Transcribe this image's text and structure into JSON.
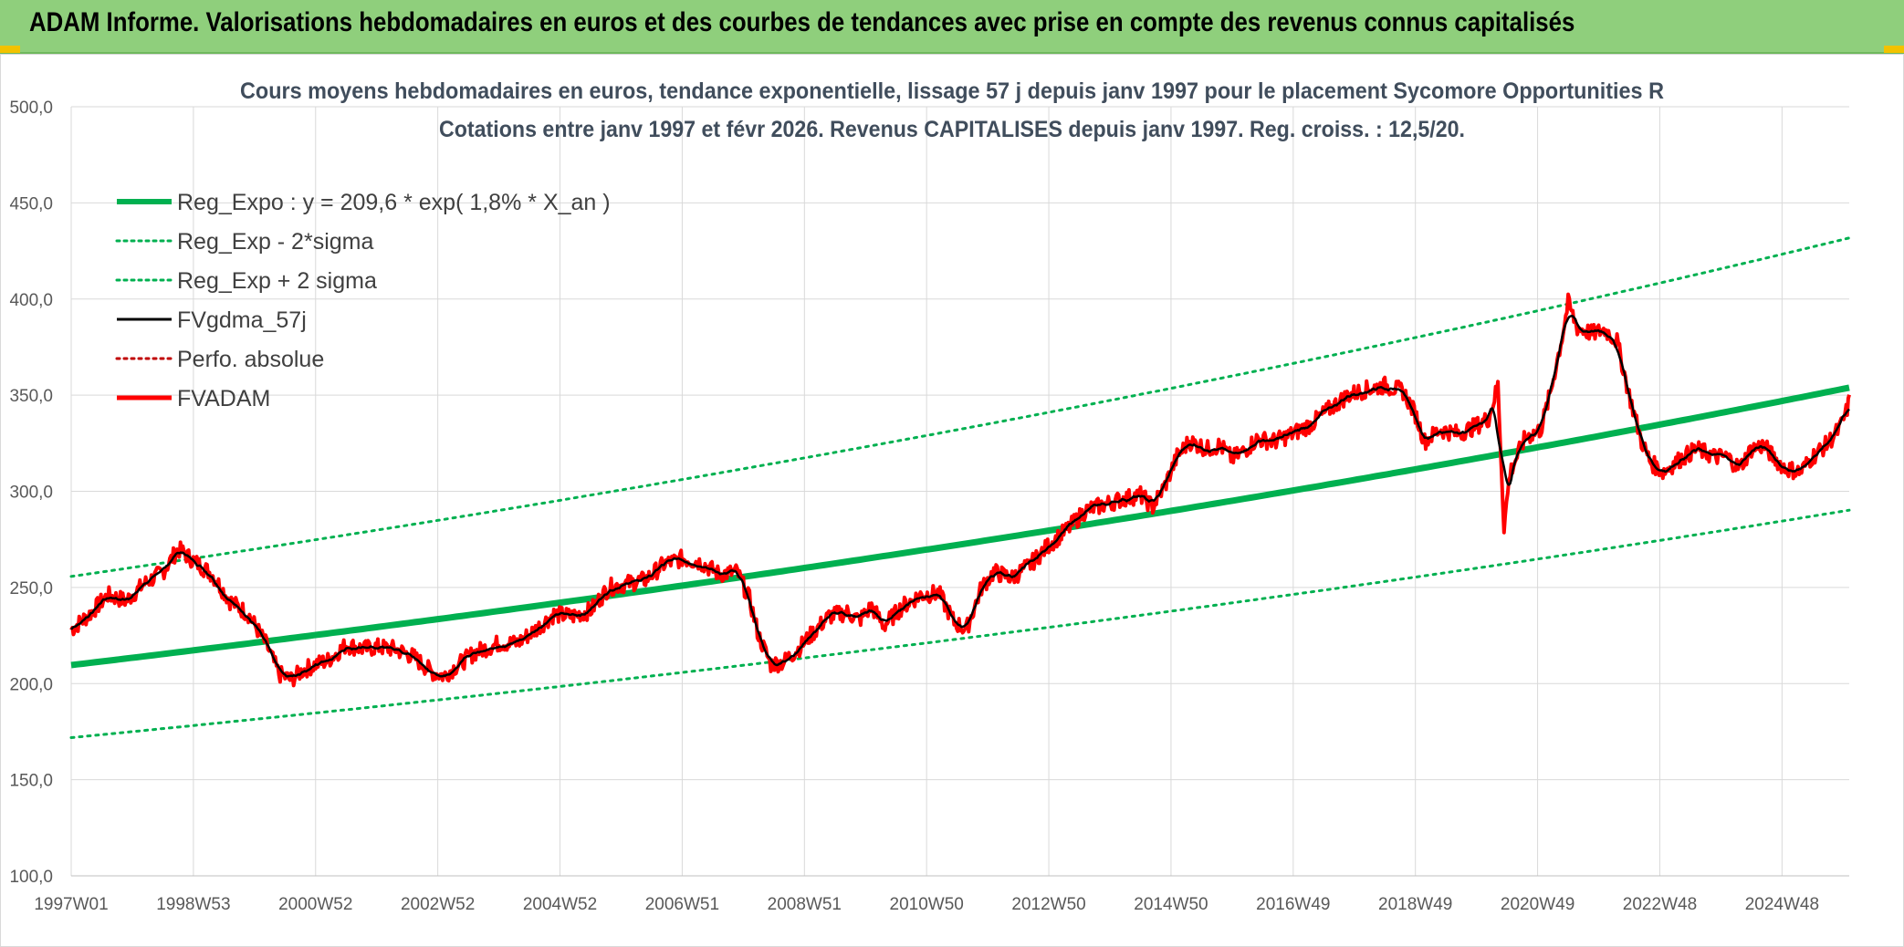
{
  "banner": {
    "title": "ADAM Informe. Valorisations hebdomadaires en euros et des courbes de tendances avec prise en compte des revenus connus capitalisés"
  },
  "chart_data": {
    "type": "line",
    "title_line1": "Cours moyens hebdomadaires en euros, tendance exponentielle, lissage 57 j depuis janv 1997 pour le placement Sycomore Opportunities R",
    "title_line2": "Cotations entre janv 1997 et févr 2026. Revenus CAPITALISES depuis janv 1997. Reg. croiss. : 12,5/20.",
    "ylim": [
      100,
      500
    ],
    "y_ticks": [
      "100,0",
      "150,0",
      "200,0",
      "250,0",
      "300,0",
      "350,0",
      "400,0",
      "450,0",
      "500,0"
    ],
    "x_range": [
      1997.0,
      2026.1
    ],
    "x_ticks": [
      {
        "label": "1997W01",
        "x": 1997.0
      },
      {
        "label": "1998W53",
        "x": 1999.0
      },
      {
        "label": "2000W52",
        "x": 2001.0
      },
      {
        "label": "2002W52",
        "x": 2003.0
      },
      {
        "label": "2004W52",
        "x": 2005.0
      },
      {
        "label": "2006W51",
        "x": 2007.0
      },
      {
        "label": "2008W51",
        "x": 2009.0
      },
      {
        "label": "2010W50",
        "x": 2011.0
      },
      {
        "label": "2012W50",
        "x": 2013.0
      },
      {
        "label": "2014W50",
        "x": 2015.0
      },
      {
        "label": "2016W49",
        "x": 2017.0
      },
      {
        "label": "2018W49",
        "x": 2019.0
      },
      {
        "label": "2020W49",
        "x": 2021.0
      },
      {
        "label": "2022W48",
        "x": 2023.0
      },
      {
        "label": "2024W48",
        "x": 2025.0
      }
    ],
    "grid": true,
    "legend_position": "top-left",
    "regression": {
      "a": 209.6,
      "rate": 0.018,
      "sigma_factor_low": 0.82,
      "sigma_factor_high": 1.22
    },
    "series": [
      {
        "name": "Reg_Expo : y = 209,6 * exp( 1,8% *  X_an )",
        "key": "reg",
        "color": "#00b050",
        "style": "solid-thick"
      },
      {
        "name": "Reg_Exp - 2*sigma",
        "key": "low",
        "color": "#00b050",
        "style": "dotted"
      },
      {
        "name": "Reg_Exp + 2 sigma",
        "key": "high",
        "color": "#00b050",
        "style": "dotted"
      },
      {
        "name": "FVgdma_57j",
        "key": "ma",
        "color": "#000000",
        "style": "solid"
      },
      {
        "name": "Perfo. absolue",
        "key": "perf",
        "color": "#c00000",
        "style": "dotted"
      },
      {
        "name": "FVADAM",
        "key": "price",
        "color": "#ff0000",
        "style": "solid-thick"
      }
    ],
    "price_points": [
      [
        1997.0,
        228
      ],
      [
        1997.3,
        236
      ],
      [
        1997.6,
        246
      ],
      [
        1997.9,
        243
      ],
      [
        1998.2,
        252
      ],
      [
        1998.5,
        258
      ],
      [
        1998.75,
        270
      ],
      [
        1999.0,
        264
      ],
      [
        1999.3,
        257
      ],
      [
        1999.6,
        243
      ],
      [
        1999.9,
        236
      ],
      [
        2000.2,
        220
      ],
      [
        2000.4,
        205
      ],
      [
        2000.6,
        202
      ],
      [
        2000.8,
        207
      ],
      [
        2001.0,
        210
      ],
      [
        2001.2,
        212
      ],
      [
        2001.5,
        220
      ],
      [
        2001.8,
        218
      ],
      [
        2002.0,
        219
      ],
      [
        2002.3,
        218
      ],
      [
        2002.6,
        214
      ],
      [
        2002.9,
        206
      ],
      [
        2003.1,
        204
      ],
      [
        2003.3,
        209
      ],
      [
        2003.6,
        216
      ],
      [
        2004.0,
        221
      ],
      [
        2004.3,
        221
      ],
      [
        2004.6,
        228
      ],
      [
        2004.9,
        236
      ],
      [
        2005.2,
        235
      ],
      [
        2005.5,
        238
      ],
      [
        2005.8,
        250
      ],
      [
        2006.1,
        252
      ],
      [
        2006.4,
        254
      ],
      [
        2006.7,
        262
      ],
      [
        2007.0,
        265
      ],
      [
        2007.3,
        263
      ],
      [
        2007.6,
        257
      ],
      [
        2007.9,
        258
      ],
      [
        2008.1,
        244
      ],
      [
        2008.25,
        225
      ],
      [
        2008.45,
        210
      ],
      [
        2008.65,
        211
      ],
      [
        2008.9,
        218
      ],
      [
        2009.1,
        225
      ],
      [
        2009.4,
        235
      ],
      [
        2009.7,
        237
      ],
      [
        2009.9,
        233
      ],
      [
        2010.1,
        240
      ],
      [
        2010.3,
        230
      ],
      [
        2010.6,
        240
      ],
      [
        2010.9,
        246
      ],
      [
        2011.2,
        247
      ],
      [
        2011.45,
        232
      ],
      [
        2011.65,
        228
      ],
      [
        2011.9,
        250
      ],
      [
        2012.1,
        258
      ],
      [
        2012.4,
        255
      ],
      [
        2012.7,
        262
      ],
      [
        2013.0,
        272
      ],
      [
        2013.3,
        280
      ],
      [
        2013.6,
        290
      ],
      [
        2013.9,
        293
      ],
      [
        2014.2,
        296
      ],
      [
        2014.5,
        298
      ],
      [
        2014.7,
        292
      ],
      [
        2014.9,
        303
      ],
      [
        2015.1,
        318
      ],
      [
        2015.3,
        326
      ],
      [
        2015.6,
        322
      ],
      [
        2015.8,
        324
      ],
      [
        2016.0,
        317
      ],
      [
        2016.2,
        321
      ],
      [
        2016.4,
        327
      ],
      [
        2016.7,
        326
      ],
      [
        2017.0,
        330
      ],
      [
        2017.3,
        335
      ],
      [
        2017.6,
        343
      ],
      [
        2017.9,
        350
      ],
      [
        2018.2,
        353
      ],
      [
        2018.5,
        355
      ],
      [
        2018.8,
        352
      ],
      [
        2019.0,
        340
      ],
      [
        2019.15,
        326
      ],
      [
        2019.4,
        332
      ],
      [
        2019.7,
        330
      ],
      [
        2020.0,
        334
      ],
      [
        2020.2,
        338
      ],
      [
        2020.35,
        355
      ],
      [
        2020.45,
        282
      ],
      [
        2020.55,
        310
      ],
      [
        2020.8,
        328
      ],
      [
        2021.05,
        332
      ],
      [
        2021.2,
        350
      ],
      [
        2021.4,
        380
      ],
      [
        2021.5,
        398
      ],
      [
        2021.65,
        385
      ],
      [
        2021.9,
        382
      ],
      [
        2022.1,
        384
      ],
      [
        2022.3,
        378
      ],
      [
        2022.5,
        350
      ],
      [
        2022.7,
        326
      ],
      [
        2022.85,
        315
      ],
      [
        2023.05,
        310
      ],
      [
        2023.3,
        316
      ],
      [
        2023.6,
        322
      ],
      [
        2023.9,
        318
      ],
      [
        2024.1,
        318
      ],
      [
        2024.3,
        312
      ],
      [
        2024.5,
        322
      ],
      [
        2024.7,
        324
      ],
      [
        2024.85,
        318
      ],
      [
        2025.05,
        312
      ],
      [
        2025.3,
        310
      ],
      [
        2025.5,
        318
      ],
      [
        2025.75,
        325
      ],
      [
        2025.95,
        333
      ],
      [
        2026.05,
        341
      ],
      [
        2026.1,
        347
      ]
    ]
  }
}
